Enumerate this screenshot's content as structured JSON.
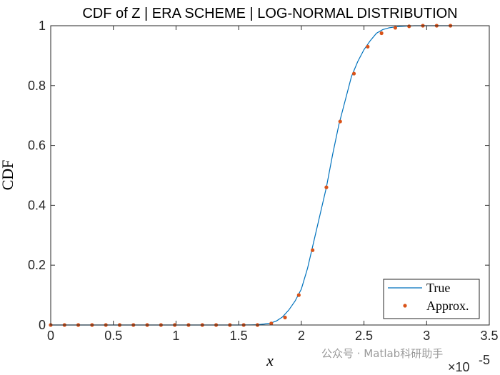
{
  "chart_data": {
    "type": "line",
    "title": "CDF of Z | ERA SCHEME | LOG-NORMAL DISTRIBUTION",
    "xlabel": "x",
    "ylabel": "CDF",
    "x_exponent_base": "×10",
    "x_exponent_power": "-5",
    "xlim": [
      0,
      3.5
    ],
    "ylim": [
      0,
      1
    ],
    "x_ticks": [
      0,
      0.5,
      1,
      1.5,
      2,
      2.5,
      3,
      3.5
    ],
    "x_tick_labels": [
      "0",
      "0.5",
      "1",
      "1.5",
      "2",
      "2.5",
      "3",
      "3.5"
    ],
    "y_ticks": [
      0,
      0.2,
      0.4,
      0.6,
      0.8,
      1
    ],
    "y_tick_labels": [
      "0",
      "0.2",
      "0.4",
      "0.6",
      "0.8",
      "1"
    ],
    "grid": false,
    "legend_position": "bottom-right",
    "series": [
      {
        "name": "True",
        "style": "line",
        "color": "#0072BD",
        "x": [
          0,
          0.5,
          1.0,
          1.5,
          1.6,
          1.65,
          1.7,
          1.75,
          1.8,
          1.85,
          1.9,
          1.95,
          2.0,
          2.05,
          2.1,
          2.15,
          2.2,
          2.25,
          2.3,
          2.35,
          2.4,
          2.45,
          2.5,
          2.55,
          2.6,
          2.65,
          2.7,
          2.75,
          2.8,
          2.85,
          2.9,
          3.0,
          3.1,
          3.2
        ],
        "y": [
          0,
          0,
          0,
          0,
          0.0005,
          0.001,
          0.003,
          0.006,
          0.013,
          0.027,
          0.05,
          0.08,
          0.12,
          0.19,
          0.28,
          0.37,
          0.46,
          0.57,
          0.67,
          0.75,
          0.83,
          0.88,
          0.92,
          0.95,
          0.975,
          0.987,
          0.993,
          0.996,
          0.998,
          0.999,
          1.0,
          1.0,
          1.0,
          1.0
        ]
      },
      {
        "name": "Approx.",
        "style": "scatter",
        "color": "#D95319",
        "x": [
          0,
          0.11,
          0.22,
          0.33,
          0.44,
          0.55,
          0.66,
          0.77,
          0.88,
          0.99,
          1.1,
          1.21,
          1.32,
          1.43,
          1.54,
          1.65,
          1.76,
          1.87,
          1.98,
          2.09,
          2.2,
          2.31,
          2.42,
          2.53,
          2.64,
          2.75,
          2.86,
          2.97,
          3.08,
          3.19
        ],
        "y": [
          0,
          0,
          0,
          0,
          0,
          0,
          0,
          0,
          0,
          0,
          0,
          0,
          0,
          0,
          0,
          0,
          0.005,
          0.025,
          0.1,
          0.25,
          0.46,
          0.68,
          0.84,
          0.93,
          0.975,
          0.993,
          0.998,
          1.0,
          1.0,
          1.0
        ]
      }
    ]
  },
  "watermark": {
    "text": "公众号 · Matlab科研助手"
  }
}
